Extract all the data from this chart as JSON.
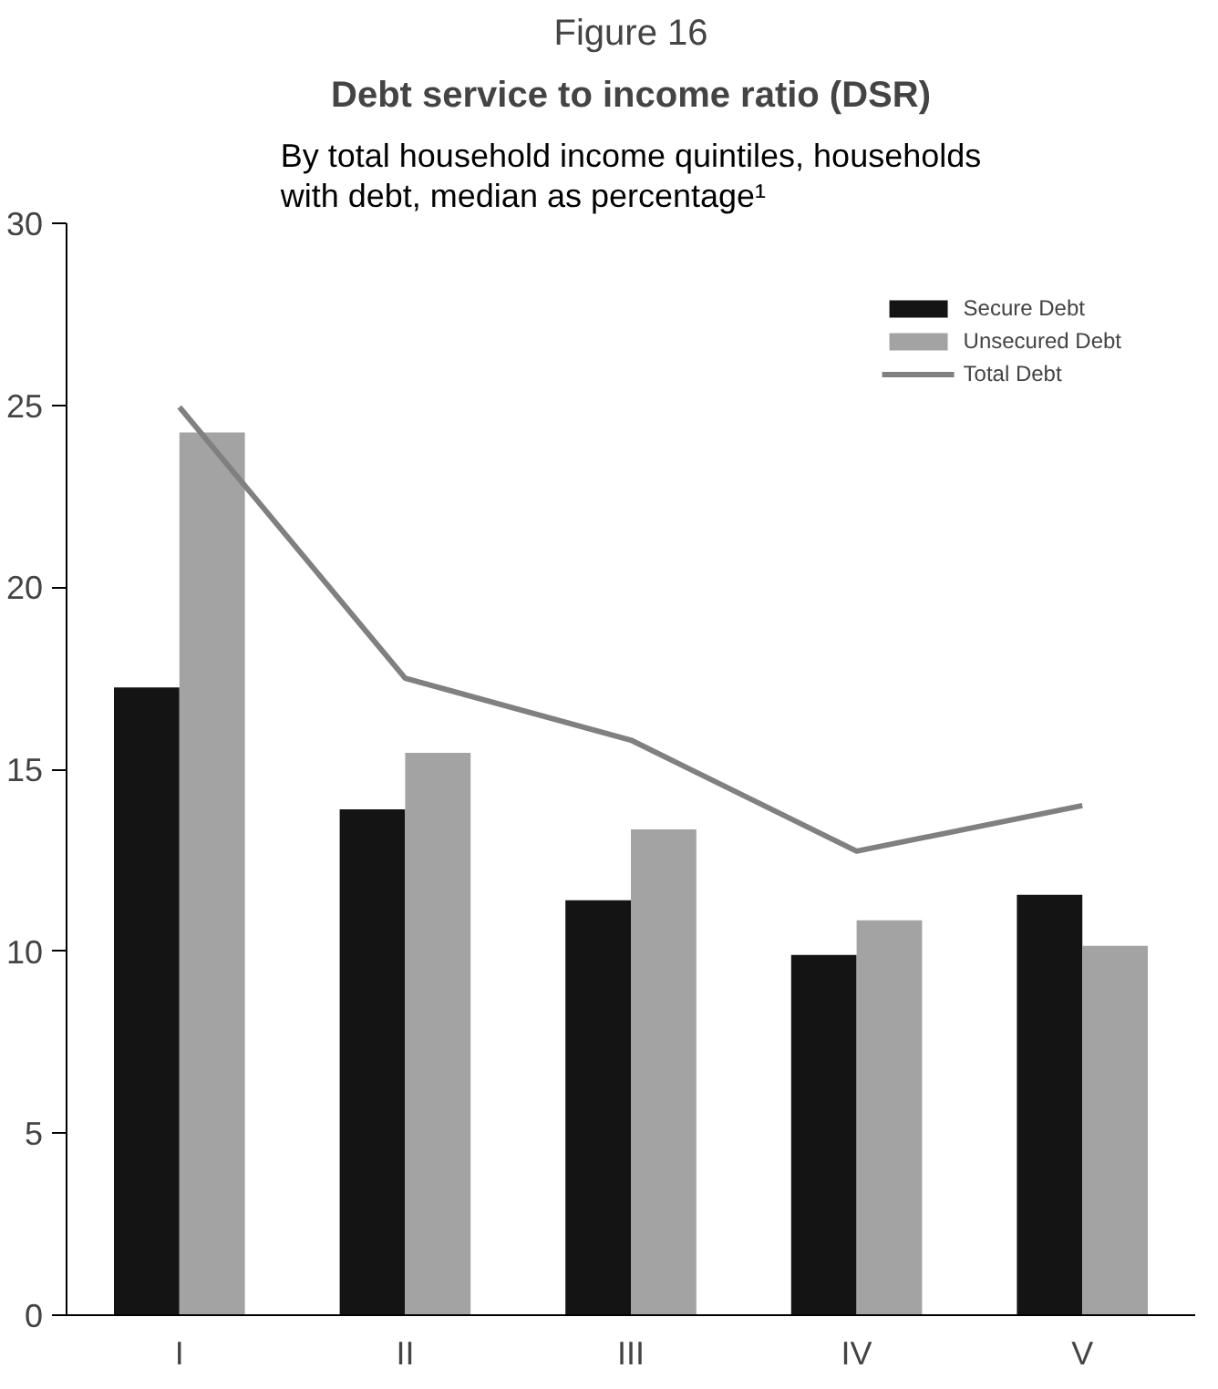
{
  "chart_data": {
    "type": "bar",
    "title": "Debt service to income ratio (DSR)",
    "subtitle": "By total household income quintiles, households\nwith debt, median as percentage¹",
    "annotations": [
      "Figure 16"
    ],
    "categories": [
      "I",
      "II",
      "III",
      "IV",
      "V"
    ],
    "series": [
      {
        "name": "Secure Debt",
        "color": "#141414",
        "values": [
          17.25,
          13.9,
          11.4,
          9.9,
          11.55
        ]
      },
      {
        "name": "Unsecured Debt",
        "color": "#a3a3a3",
        "values": [
          24.25,
          15.45,
          13.35,
          10.85,
          10.15
        ]
      },
      {
        "name": "Total Debt",
        "type": "line",
        "color": "#808080",
        "values": [
          24.95,
          17.5,
          15.8,
          12.75,
          14.0
        ]
      }
    ],
    "ylim": [
      0,
      30
    ],
    "yticks": [
      0,
      5,
      10,
      15,
      20,
      25,
      30
    ],
    "grid": false,
    "legend": "top right"
  }
}
